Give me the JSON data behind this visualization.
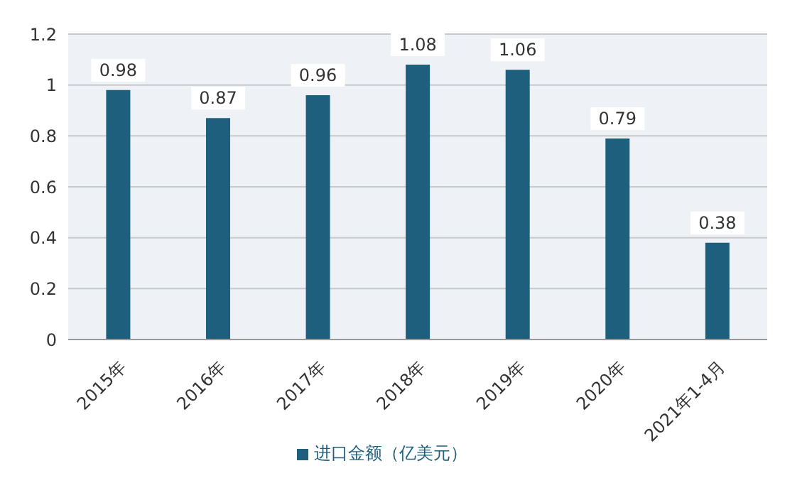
{
  "chart_data": {
    "type": "bar",
    "categories": [
      "2015年",
      "2016年",
      "2017年",
      "2018年",
      "2019年",
      "2020年",
      "2021年1-4月"
    ],
    "series": [
      {
        "name": "进口金额（亿美元）",
        "color": "#1f5f7e",
        "values": [
          0.98,
          0.87,
          0.96,
          1.08,
          1.06,
          0.79,
          0.38
        ]
      }
    ],
    "ylim": [
      0,
      1.2
    ],
    "yticks": [
      0,
      0.2,
      0.4,
      0.6,
      0.8,
      1,
      1.2
    ],
    "grid": "y",
    "legend": "bottom",
    "data_labels": true
  }
}
